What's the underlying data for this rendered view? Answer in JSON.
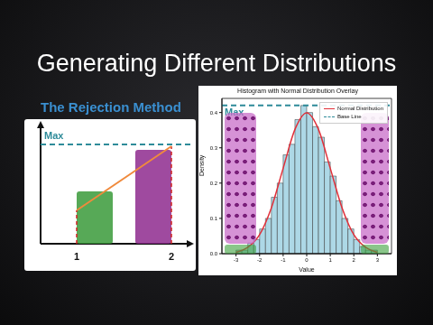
{
  "title": "Generating Different Distributions",
  "subtitle": "The Rejection Method",
  "diagram": {
    "max_label": "Max",
    "x_labels": [
      "1",
      "2"
    ]
  },
  "chart_data": {
    "type": "histogram",
    "title": "Histogram with Normal Distribution Overlay",
    "x_label": "Value",
    "y_label": "Density",
    "bins": [
      -3,
      -2.75,
      -2.5,
      -2.25,
      -2,
      -1.75,
      -1.5,
      -1.25,
      -1,
      -0.75,
      -0.5,
      -0.25,
      0,
      0.25,
      0.5,
      0.75,
      1,
      1.25,
      1.5,
      1.75,
      2,
      2.25,
      2.5,
      2.75,
      3
    ],
    "counts": [
      0.01,
      0.01,
      0.03,
      0.04,
      0.07,
      0.1,
      0.16,
      0.2,
      0.28,
      0.31,
      0.38,
      0.42,
      0.4,
      0.36,
      0.33,
      0.26,
      0.22,
      0.15,
      0.1,
      0.07,
      0.04,
      0.02,
      0.01,
      0.01
    ],
    "color": "#add8e6",
    "series": [
      {
        "name": "Normal Distribution",
        "color": "#e0303a",
        "type": "line",
        "x": [
          -3,
          -2.5,
          -2,
          -1.5,
          -1,
          -0.5,
          0,
          0.5,
          1,
          1.5,
          2,
          2.5,
          3
        ],
        "values": [
          0.004,
          0.018,
          0.054,
          0.13,
          0.242,
          0.352,
          0.399,
          0.352,
          0.242,
          0.13,
          0.054,
          0.018,
          0.004
        ]
      }
    ],
    "max_line": {
      "name": "Base Line",
      "label": "Max",
      "value": 0.42,
      "color": "#2e8b99",
      "line_style": "dashed"
    },
    "xlim": [
      -3.6,
      3.6
    ],
    "xticks": [
      -3,
      -2,
      -1,
      0,
      1,
      2,
      3
    ],
    "ylim": [
      0,
      0.44
    ],
    "yticks": [
      {
        "value": 0,
        "label": "0.0"
      },
      {
        "value": 0.1,
        "label": "0.1"
      },
      {
        "value": 0.2,
        "label": "0.2"
      },
      {
        "value": 0.3,
        "label": "0.3"
      },
      {
        "value": 0.4,
        "label": "0.4"
      }
    ],
    "legend": "upper right"
  }
}
